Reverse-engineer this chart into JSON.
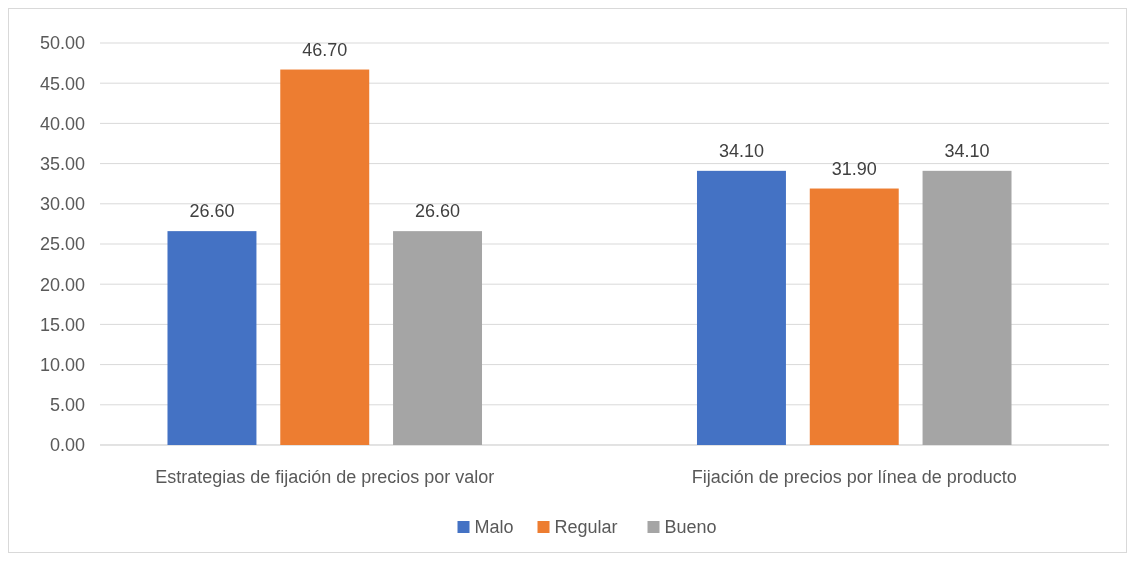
{
  "chart_data": {
    "type": "bar",
    "categories": [
      "Estrategias de fijación de precios por valor",
      "Fijación de precios por línea de producto"
    ],
    "series": [
      {
        "name": "Malo",
        "color": "#4472c4",
        "values": [
          26.6,
          34.1
        ],
        "value_labels": [
          "26.60",
          "34.10"
        ]
      },
      {
        "name": "Regular",
        "color": "#ed7d31",
        "values": [
          46.7,
          31.9
        ],
        "value_labels": [
          "46.70",
          "31.90"
        ]
      },
      {
        "name": "Bueno",
        "color": "#a5a5a5",
        "values": [
          26.6,
          34.1
        ],
        "value_labels": [
          "26.60",
          "34.10"
        ]
      }
    ],
    "ylim": [
      0,
      50
    ],
    "yticks": [
      {
        "value": 0,
        "label": "0.00"
      },
      {
        "value": 5,
        "label": "5.00"
      },
      {
        "value": 10,
        "label": "10.00"
      },
      {
        "value": 15,
        "label": "15.00"
      },
      {
        "value": 20,
        "label": "20.00"
      },
      {
        "value": 25,
        "label": "25.00"
      },
      {
        "value": 30,
        "label": "30.00"
      },
      {
        "value": 35,
        "label": "35.00"
      },
      {
        "value": 40,
        "label": "40.00"
      },
      {
        "value": 45,
        "label": "45.00"
      },
      {
        "value": 50,
        "label": "50.00"
      }
    ],
    "grid": "y",
    "legend": "bottom"
  }
}
